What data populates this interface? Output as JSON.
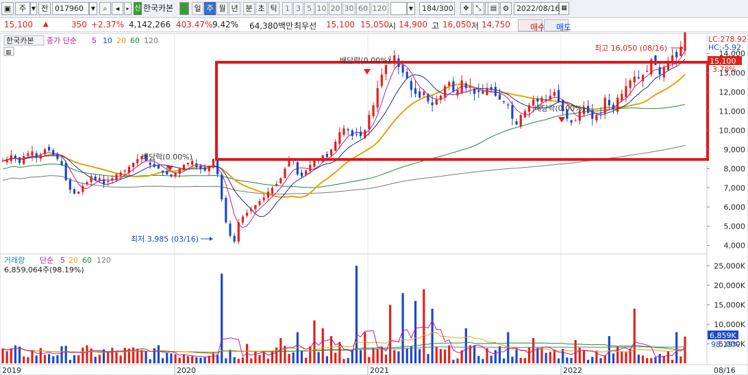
{
  "toolbar": {
    "market_label": "주",
    "prev_label": "전",
    "code": "017960",
    "credit_badge": "신",
    "stock_name": "한국카본",
    "periods": [
      "일",
      "주",
      "월",
      "년",
      "분",
      "초",
      "틱"
    ],
    "selected_period": "주",
    "intervals": [
      "1",
      "3",
      "5",
      "10",
      "20",
      "30",
      "60",
      "120"
    ],
    "count": "184",
    "count_total": "/300",
    "date": "2022/08/16"
  },
  "quote": {
    "price": "15,100",
    "change": "350",
    "change_pct": "+2.37%",
    "volume": "4,142,266",
    "volume_ratio": "403.47%",
    "turnover": "9.42%",
    "amount": "64,380백만",
    "best_label": "최우선",
    "ask": "15,100",
    "bid": "15,050",
    "open_label": "시",
    "open": "14,900",
    "high_label": "고",
    "high": "16,050",
    "low_label": "저",
    "low": "14,750",
    "buy_label": "매수",
    "sell_label": "매도"
  },
  "price_pane": {
    "legend_name": "한국카본",
    "legend_items": [
      "종가 단순",
      "5",
      "10",
      "20",
      "60",
      "120"
    ],
    "legend_colors": [
      "#c2189a",
      "#c2189a",
      "#1a48c8",
      "#e8a000",
      "#1a8a3a",
      "#777777"
    ],
    "lc_label": "LC:278.92",
    "hc_label": "HC:-5.92",
    "current_price": "15,100",
    "current_pct": "3.78%",
    "y_ticks": [
      "14,000",
      "13,000",
      "12,000",
      "11,000",
      "10,000",
      "9,000",
      "8,000",
      "7,000",
      "6,000",
      "5,000",
      "4,000"
    ],
    "annotation_high": "최고 16,050 (08/16)",
    "annotation_low": "최저 3,985 (03/16)",
    "dividend_labels": [
      "배당락(0.00%)",
      "배당락(0.00%)",
      "배당락(0.00%)"
    ]
  },
  "volume_pane": {
    "legend_items": [
      "거래량",
      "단순",
      "5",
      "20",
      "60",
      "120"
    ],
    "legend_colors": [
      "#1a8a9a",
      "#c2189a",
      "#c2189a",
      "#e8a000",
      "#1a8a3a",
      "#777777"
    ],
    "volume_value": "6,859,064주(98.19%)",
    "y_ticks": [
      "25,000K",
      "20,000K",
      "15,000K",
      "10,000K",
      "5,000K"
    ],
    "current_volume": "6,859K",
    "current_ratio": "98.19%"
  },
  "x_axis": [
    "2019",
    "2020",
    "2021",
    "2022",
    "08/16"
  ],
  "colors": {
    "up": "#e0201b",
    "down": "#1a48c8",
    "highlight_box": "#e8141c",
    "ma5": "#c2189a",
    "ma10": "#1a2a9a",
    "ma20": "#e8a000",
    "ma60": "#1a8a3a",
    "ma120": "#777777"
  },
  "chart_data": {
    "type": "candlestick",
    "weekly_closes": [
      8400,
      8500,
      8700,
      8550,
      8300,
      8650,
      8800,
      8900,
      8600,
      8700,
      9000,
      8950,
      8700,
      8500,
      8200,
      7400,
      6900,
      6700,
      6800,
      7100,
      7300,
      7600,
      7400,
      7500,
      7200,
      7350,
      7500,
      7700,
      7800,
      7900,
      8100,
      8300,
      8500,
      8650,
      8400,
      8200,
      8100,
      8000,
      7800,
      7700,
      7600,
      7800,
      8000,
      8200,
      8300,
      8400,
      8100,
      8000,
      7900,
      8150,
      8500,
      7700,
      6400,
      5200,
      4500,
      4200,
      5200,
      5500,
      5700,
      5900,
      6100,
      6300,
      6500,
      6800,
      7000,
      7200,
      7500,
      8000,
      8500,
      8400,
      7700,
      7600,
      7900,
      8200,
      8500,
      8400,
      8700,
      8600,
      9000,
      9400,
      9900,
      10100,
      10000,
      9700,
      9800,
      9700,
      10000,
      10800,
      11300,
      12200,
      12900,
      13400,
      13600,
      13900,
      13300,
      13000,
      12700,
      12100,
      11900,
      11700,
      12000,
      11500,
      11300,
      11600,
      11800,
      12300,
      12500,
      12000,
      12100,
      12600,
      12200,
      12300,
      11900,
      12000,
      11900,
      12200,
      12100,
      11800,
      11600,
      11500,
      11300,
      10600,
      10300,
      10800,
      11000,
      11300,
      11600,
      11500,
      11700,
      11600,
      11800,
      12000,
      11500,
      11000,
      10600,
      10400,
      10500,
      11000,
      11200,
      10900,
      10600,
      10800,
      10900,
      11700,
      11300,
      11100,
      11700,
      11900,
      12300,
      12600,
      12800,
      12700,
      12900,
      13100,
      13700,
      13400,
      12900,
      13300,
      13600,
      13900,
      13800,
      14300,
      15100
    ],
    "high_annotation": {
      "value": 16050,
      "date": "08/16"
    },
    "low_annotation": {
      "value": 3985,
      "date": "03/16"
    },
    "y_range": [
      3700,
      14900
    ],
    "volume_y_range": [
      0,
      27000
    ]
  }
}
